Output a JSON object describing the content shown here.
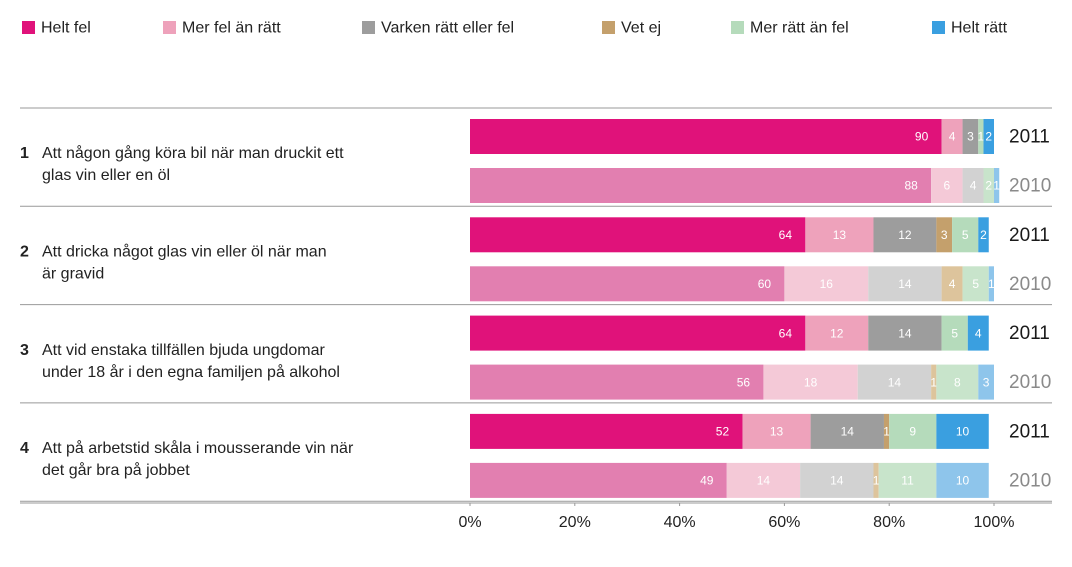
{
  "chart_data": {
    "type": "stacked-bar",
    "orientation": "horizontal",
    "series": [
      {
        "name": "Helt fel",
        "color": "#e0127a",
        "light_color": "#e27fb0",
        "values": [
          90,
          88,
          64,
          60,
          64,
          56,
          52,
          49
        ]
      },
      {
        "name": "Mer fel än rätt",
        "color": "#eea2bb",
        "light_color": "#f4c9d7",
        "values": [
          4,
          6,
          13,
          16,
          12,
          18,
          13,
          14
        ]
      },
      {
        "name": "Varken rätt eller fel",
        "color": "#9d9d9d",
        "light_color": "#d2d2d2",
        "values": [
          3,
          4,
          12,
          14,
          14,
          14,
          14,
          14
        ]
      },
      {
        "name": "Vet ej",
        "color": "#c4a06c",
        "light_color": "#ddc49c",
        "values": [
          null,
          null,
          3,
          4,
          null,
          1,
          1,
          1
        ]
      },
      {
        "name": "Mer rätt än fel",
        "color": "#b5dbbb",
        "light_color": "#c8e4cb",
        "values": [
          1,
          2,
          5,
          5,
          5,
          8,
          9,
          11
        ]
      },
      {
        "name": "Helt rätt",
        "color": "#3a9fe0",
        "light_color": "#8ec5eb",
        "values": [
          2,
          1,
          2,
          1,
          4,
          3,
          10,
          10
        ]
      }
    ],
    "categories": [
      "2011",
      "2010",
      "2011",
      "2010",
      "2011",
      "2010",
      "2011",
      "2010"
    ],
    "groups": [
      {
        "number": "1",
        "lines": [
          "Att någon gång köra bil när man druckit ett",
          "glas vin eller en öl"
        ]
      },
      {
        "number": "2",
        "lines": [
          "Att dricka något glas vin eller öl när man",
          "är gravid"
        ]
      },
      {
        "number": "3",
        "lines": [
          "Att vid enstaka tillfällen bjuda ungdomar",
          "under 18 år i den egna familjen på alkohol"
        ]
      },
      {
        "number": "4",
        "lines": [
          "Att på arbetstid skåla i mousserande vin när",
          "det går bra på jobbet"
        ]
      }
    ],
    "xlim": [
      0,
      100
    ],
    "xticks": [
      {
        "value": 0,
        "label": "0%"
      },
      {
        "value": 20,
        "label": "20%"
      },
      {
        "value": 40,
        "label": "40%"
      },
      {
        "value": 60,
        "label": "60%"
      },
      {
        "value": 80,
        "label": "80%"
      },
      {
        "value": 100,
        "label": "100%"
      }
    ]
  }
}
